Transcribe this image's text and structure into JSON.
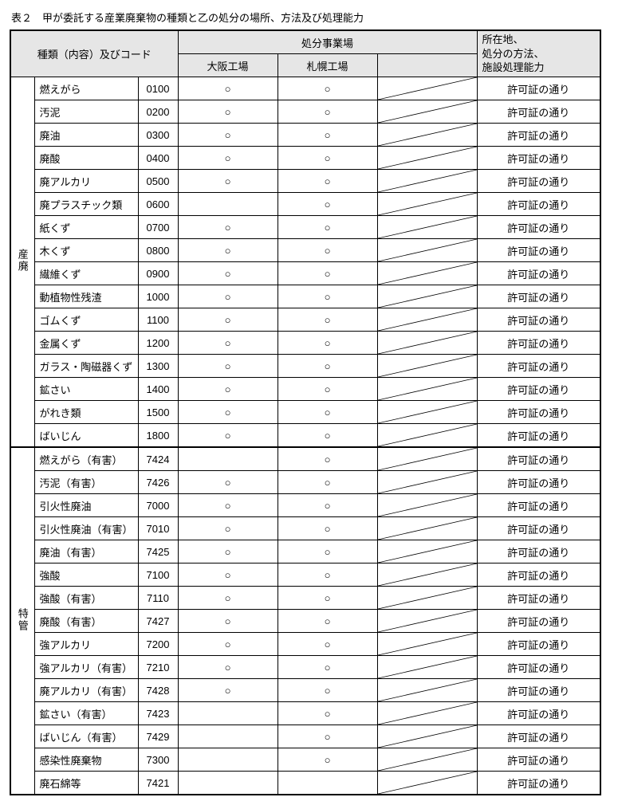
{
  "caption": "表２　甲が委託する産業廃棄物の種類と乙の処分の場所、方法及び処理能力",
  "head": {
    "kind": "種類（内容）及びコード",
    "sites_group": "処分事業場",
    "site1": "大阪工場",
    "site2": "札幌工場",
    "remarks": "所在地、\n処分の方法、\n施設処理能力"
  },
  "remark_text": "許可証の通り",
  "mark": "○",
  "group1_label": "産廃",
  "group2_label": "特管",
  "colors": {
    "header_bg": "#e6e6e6",
    "border": "#000000",
    "text": "#000000",
    "bg": "#ffffff"
  },
  "group1": [
    {
      "name": "燃えがら",
      "code": "0100",
      "s1": true,
      "s2": true
    },
    {
      "name": "汚泥",
      "code": "0200",
      "s1": true,
      "s2": true
    },
    {
      "name": "廃油",
      "code": "0300",
      "s1": true,
      "s2": true
    },
    {
      "name": "廃酸",
      "code": "0400",
      "s1": true,
      "s2": true
    },
    {
      "name": "廃アルカリ",
      "code": "0500",
      "s1": true,
      "s2": true
    },
    {
      "name": "廃プラスチック類",
      "code": "0600",
      "s1": false,
      "s2": true
    },
    {
      "name": "紙くず",
      "code": "0700",
      "s1": true,
      "s2": true
    },
    {
      "name": "木くず",
      "code": "0800",
      "s1": true,
      "s2": true
    },
    {
      "name": "繊維くず",
      "code": "0900",
      "s1": true,
      "s2": true
    },
    {
      "name": "動植物性残渣",
      "code": "1000",
      "s1": true,
      "s2": true
    },
    {
      "name": "ゴムくず",
      "code": "1100",
      "s1": true,
      "s2": true
    },
    {
      "name": "金属くず",
      "code": "1200",
      "s1": true,
      "s2": true
    },
    {
      "name": "ガラス・陶磁器くず",
      "code": "1300",
      "s1": true,
      "s2": true
    },
    {
      "name": "鉱さい",
      "code": "1400",
      "s1": true,
      "s2": true
    },
    {
      "name": "がれき類",
      "code": "1500",
      "s1": true,
      "s2": true
    },
    {
      "name": "ばいじん",
      "code": "1800",
      "s1": true,
      "s2": true
    }
  ],
  "group2": [
    {
      "name": "燃えがら（有害）",
      "code": "7424",
      "s1": false,
      "s2": true
    },
    {
      "name": "汚泥（有害）",
      "code": "7426",
      "s1": true,
      "s2": true
    },
    {
      "name": "引火性廃油",
      "code": "7000",
      "s1": true,
      "s2": true
    },
    {
      "name": "引火性廃油（有害）",
      "code": "7010",
      "s1": true,
      "s2": true
    },
    {
      "name": "廃油（有害）",
      "code": "7425",
      "s1": true,
      "s2": true
    },
    {
      "name": "強酸",
      "code": "7100",
      "s1": true,
      "s2": true
    },
    {
      "name": "強酸（有害）",
      "code": "7110",
      "s1": true,
      "s2": true
    },
    {
      "name": "廃酸（有害）",
      "code": "7427",
      "s1": true,
      "s2": true
    },
    {
      "name": "強アルカリ",
      "code": "7200",
      "s1": true,
      "s2": true
    },
    {
      "name": "強アルカリ（有害）",
      "code": "7210",
      "s1": true,
      "s2": true
    },
    {
      "name": "廃アルカリ（有害）",
      "code": "7428",
      "s1": true,
      "s2": true
    },
    {
      "name": "鉱さい（有害）",
      "code": "7423",
      "s1": false,
      "s2": true
    },
    {
      "name": "ばいじん（有害）",
      "code": "7429",
      "s1": false,
      "s2": true
    },
    {
      "name": "感染性廃棄物",
      "code": "7300",
      "s1": false,
      "s2": true
    },
    {
      "name": "廃石綿等",
      "code": "7421",
      "s1": false,
      "s2": false
    }
  ]
}
